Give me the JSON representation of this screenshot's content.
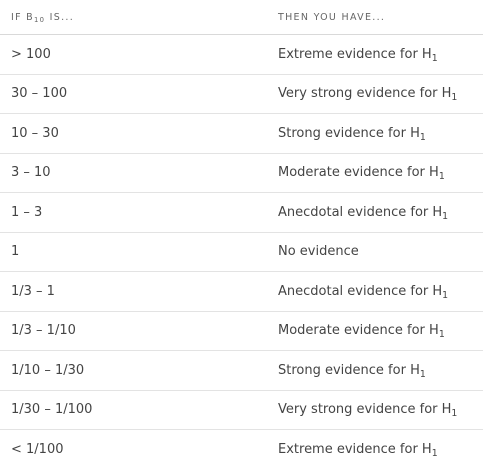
{
  "header": {
    "col1": {
      "prefix": "IF B",
      "sub": "10",
      "suffix": " IS..."
    },
    "col2": "THEN YOU HAVE..."
  },
  "rows": [
    {
      "range": "> 100",
      "evidence": "Extreme evidence for H",
      "sub": "1"
    },
    {
      "range": "30 – 100",
      "evidence": "Very strong evidence for H",
      "sub": "1"
    },
    {
      "range": "10 – 30",
      "evidence": "Strong evidence for H",
      "sub": "1"
    },
    {
      "range": "3 – 10",
      "evidence": "Moderate evidence for H",
      "sub": "1"
    },
    {
      "range": "1 – 3",
      "evidence": "Anecdotal evidence for H",
      "sub": "1"
    },
    {
      "range": "1",
      "evidence": "No evidence",
      "sub": ""
    },
    {
      "range": "1/3 – 1",
      "evidence": "Anecdotal evidence for H",
      "sub": "1"
    },
    {
      "range": "1/3 – 1/10",
      "evidence": "Moderate evidence for H",
      "sub": "1"
    },
    {
      "range": "1/10 – 1/30",
      "evidence": "Strong evidence for H",
      "sub": "1"
    },
    {
      "range": "1/30 – 1/100",
      "evidence": "Very strong evidence for H",
      "sub": "1"
    },
    {
      "range": "< 1/100",
      "evidence": "Extreme evidence for H",
      "sub": "1"
    }
  ]
}
